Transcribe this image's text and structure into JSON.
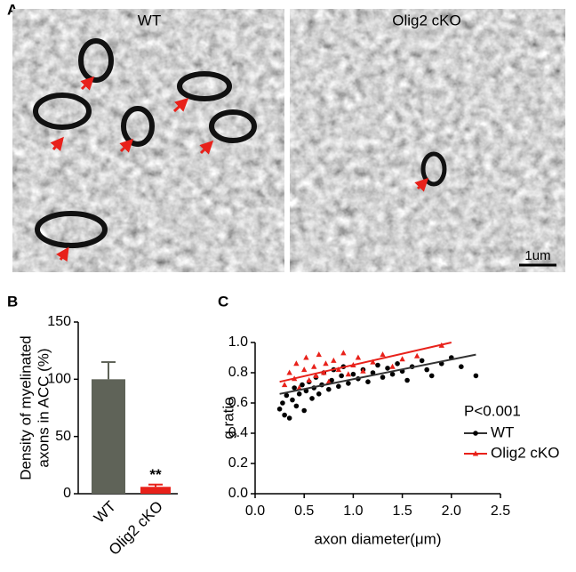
{
  "figure": {
    "panel_a": {
      "label": "A",
      "images": [
        {
          "title": "WT"
        },
        {
          "title": "Olig2 cKO",
          "scale_bar": "1um"
        }
      ]
    }
  },
  "chart_data": [
    {
      "type": "bar",
      "panel_label": "B",
      "ylabel": [
        "Density of myelinated",
        "axons in ACC (%)"
      ],
      "categories": [
        "WT",
        "Olig2 cKO"
      ],
      "values": [
        100,
        6
      ],
      "errors": [
        15,
        2
      ],
      "colors": [
        "#5f6358",
        "#e8211a"
      ],
      "annotation": "**",
      "ylim": [
        0,
        150
      ],
      "yticks": [
        0,
        50,
        100,
        150
      ]
    },
    {
      "type": "scatter",
      "panel_label": "C",
      "xlabel": "axon diameter(μm)",
      "ylabel": "g ratio",
      "annotation": "P<0.001",
      "xlim": [
        0,
        2.5
      ],
      "xticks": [
        {
          "value": 0,
          "label": "0.0"
        },
        0.5,
        {
          "value": 1,
          "label": "1.0"
        },
        1.5,
        {
          "value": 2,
          "label": "2.0"
        },
        2.5
      ],
      "ylim": [
        0,
        1
      ],
      "yticks": [
        {
          "value": 0,
          "label": "0.0"
        },
        0.2,
        0.4,
        0.6,
        0.8,
        {
          "value": 1,
          "label": "1.0"
        }
      ],
      "series": [
        {
          "name": "WT",
          "color": "#000000",
          "line_color": "#333333",
          "marker": "circle",
          "x": [
            0.25,
            0.28,
            0.3,
            0.32,
            0.35,
            0.38,
            0.4,
            0.42,
            0.45,
            0.48,
            0.5,
            0.52,
            0.55,
            0.58,
            0.6,
            0.62,
            0.65,
            0.68,
            0.7,
            0.75,
            0.78,
            0.8,
            0.85,
            0.88,
            0.9,
            0.95,
            1.0,
            1.05,
            1.1,
            1.15,
            1.2,
            1.25,
            1.3,
            1.35,
            1.4,
            1.45,
            1.5,
            1.55,
            1.6,
            1.7,
            1.75,
            1.8,
            1.9,
            2.0,
            2.1,
            2.25
          ],
          "values": [
            0.56,
            0.6,
            0.52,
            0.65,
            0.5,
            0.62,
            0.7,
            0.58,
            0.66,
            0.72,
            0.55,
            0.68,
            0.74,
            0.63,
            0.7,
            0.77,
            0.66,
            0.72,
            0.8,
            0.69,
            0.75,
            0.82,
            0.71,
            0.78,
            0.84,
            0.73,
            0.79,
            0.76,
            0.82,
            0.74,
            0.8,
            0.85,
            0.77,
            0.83,
            0.79,
            0.86,
            0.81,
            0.75,
            0.84,
            0.88,
            0.82,
            0.78,
            0.86,
            0.9,
            0.84,
            0.78
          ],
          "fit_x": [
            0.25,
            2.25
          ],
          "fit_y": [
            0.66,
            0.92
          ]
        },
        {
          "name": "Olig2 cKO",
          "color": "#e8211a",
          "line_color": "#e8211a",
          "marker": "triangle",
          "x": [
            0.3,
            0.35,
            0.4,
            0.42,
            0.45,
            0.5,
            0.52,
            0.55,
            0.6,
            0.62,
            0.65,
            0.7,
            0.72,
            0.75,
            0.8,
            0.85,
            0.9,
            0.95,
            1.0,
            1.05,
            1.1,
            1.2,
            1.3,
            1.4,
            1.5,
            1.65,
            1.9
          ],
          "values": [
            0.72,
            0.8,
            0.76,
            0.86,
            0.7,
            0.82,
            0.9,
            0.75,
            0.84,
            0.78,
            0.92,
            0.8,
            0.86,
            0.74,
            0.88,
            0.82,
            0.93,
            0.79,
            0.85,
            0.9,
            0.81,
            0.87,
            0.92,
            0.84,
            0.89,
            0.91,
            0.98
          ],
          "fit_x": [
            0.25,
            2.0
          ],
          "fit_y": [
            0.74,
            1.0
          ]
        }
      ]
    }
  ]
}
